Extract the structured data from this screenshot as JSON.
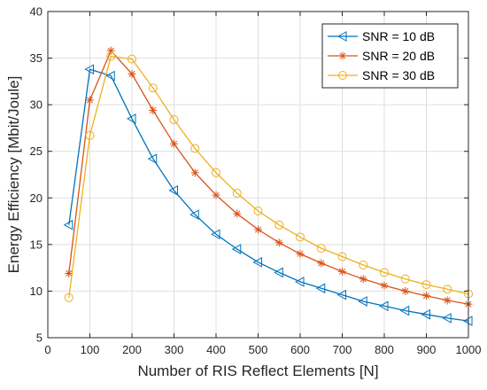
{
  "chart_data": {
    "type": "line",
    "title": "",
    "xlabel": "Number of RIS Reflect Elements [N]",
    "ylabel": "Energy Efficiency [Mbit/Joule]",
    "xlim": [
      0,
      1000
    ],
    "ylim": [
      5,
      40
    ],
    "xticks": [
      0,
      100,
      200,
      300,
      400,
      500,
      600,
      700,
      800,
      900,
      1000
    ],
    "yticks": [
      5,
      10,
      15,
      20,
      25,
      30,
      35,
      40
    ],
    "grid": true,
    "legend_position": "top-right",
    "x": [
      50,
      100,
      150,
      200,
      250,
      300,
      350,
      400,
      450,
      500,
      550,
      600,
      650,
      700,
      750,
      800,
      850,
      900,
      950,
      1000
    ],
    "series": [
      {
        "name": "SNR = 10 dB",
        "color": "#0072BD",
        "marker": "triangle-left",
        "values": [
          17.1,
          33.8,
          33.1,
          28.5,
          24.2,
          20.8,
          18.2,
          16.1,
          14.5,
          13.1,
          12.0,
          11.0,
          10.3,
          9.6,
          8.9,
          8.4,
          7.9,
          7.5,
          7.1,
          6.8
        ]
      },
      {
        "name": "SNR = 20 dB",
        "color": "#D95319",
        "marker": "asterisk",
        "values": [
          11.9,
          30.5,
          35.8,
          33.3,
          29.4,
          25.8,
          22.7,
          20.3,
          18.3,
          16.6,
          15.2,
          14.0,
          13.0,
          12.1,
          11.3,
          10.6,
          10.0,
          9.5,
          9.0,
          8.6
        ]
      },
      {
        "name": "SNR = 30 dB",
        "color": "#EDB120",
        "marker": "circle",
        "values": [
          9.3,
          26.7,
          35.2,
          34.9,
          31.8,
          28.4,
          25.3,
          22.7,
          20.5,
          18.6,
          17.1,
          15.8,
          14.6,
          13.7,
          12.8,
          12.0,
          11.3,
          10.7,
          10.2,
          9.7
        ]
      }
    ]
  }
}
